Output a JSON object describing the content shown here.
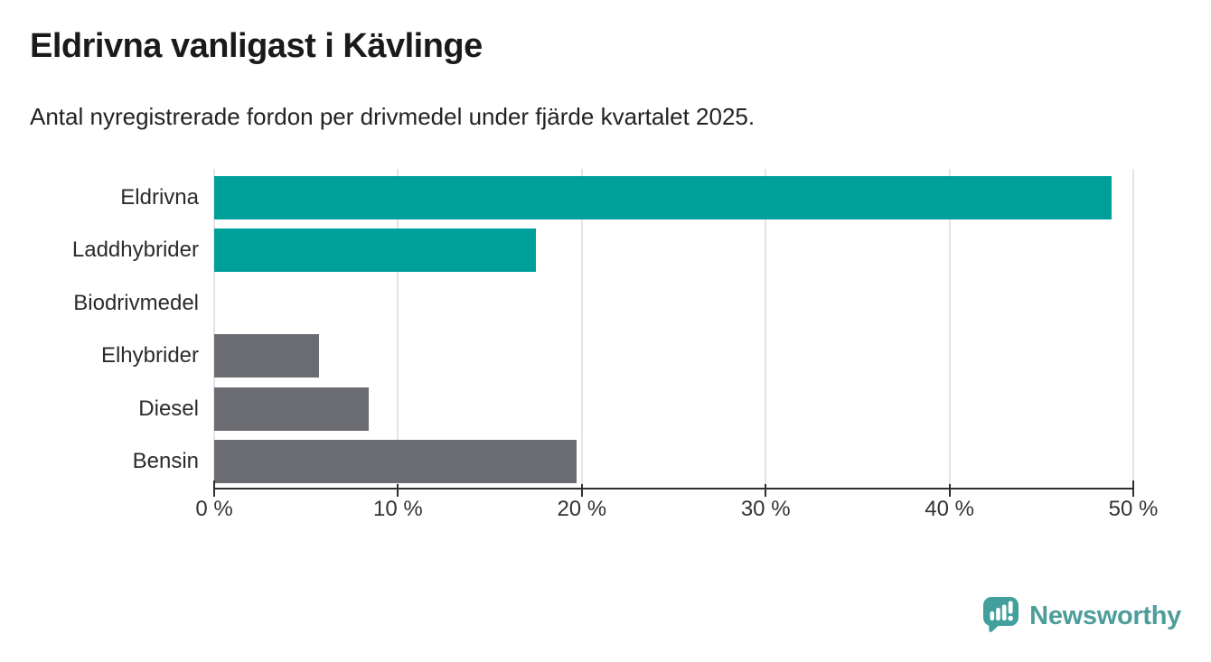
{
  "header": {
    "title": "Eldrivna vanligast i Kävlinge",
    "subtitle": "Antal nyregistrerade fordon per drivmedel under fjärde kvartalet 2025."
  },
  "chart_data": {
    "type": "bar",
    "orientation": "horizontal",
    "title": "Eldrivna vanligast i Kävlinge",
    "subtitle": "Antal nyregistrerade fordon per drivmedel under fjärde kvartalet 2025.",
    "categories": [
      "Eldrivna",
      "Laddhybrider",
      "Biodrivmedel",
      "Elhybrider",
      "Diesel",
      "Bensin"
    ],
    "values": [
      48.8,
      17.5,
      0,
      5.7,
      8.4,
      19.7
    ],
    "unit": "%",
    "xlabel": "",
    "ylabel": "",
    "xlim": [
      0,
      50
    ],
    "x_ticks": [
      0,
      10,
      20,
      30,
      40,
      50
    ],
    "x_tick_labels": [
      "0 %",
      "10 %",
      "20 %",
      "30 %",
      "40 %",
      "50 %"
    ],
    "bar_colors": [
      "#00a09a",
      "#00a09a",
      "#6b6b72",
      "#6b6b72",
      "#6b6b72",
      "#6b6b72"
    ],
    "grid": true,
    "legend": "none"
  },
  "colors": {
    "accent_teal": "#00a09a",
    "neutral_gray": "#6b6b72",
    "gridline": "#e4e4e4",
    "axis": "#2e2e2e",
    "brand_teal": "#4d9d9a"
  },
  "footer": {
    "brand": "Newsworthy",
    "logo_icon": "newsworthy-pin-chart-icon"
  }
}
